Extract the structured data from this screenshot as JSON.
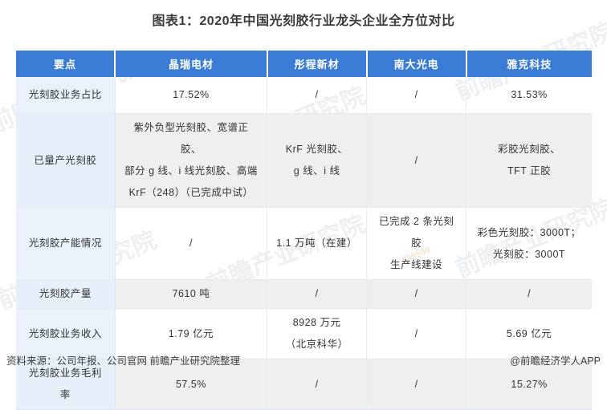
{
  "title": "图表1：2020年中国光刻胶行业龙头企业全方位对比",
  "table": {
    "headers": [
      "要点",
      "晶瑞电材",
      "彤程新材",
      "南大光电",
      "雅克科技"
    ],
    "rows": [
      {
        "label": "光刻胶业务占比",
        "cells": [
          "17.52%",
          "/",
          "/",
          "31.53%"
        ]
      },
      {
        "label": "已量产光刻胶",
        "cells": [
          "紫外负型光刻胶、宽谱正胶、\n部分 g 线、i 线光刻胶、高端\nKrF（248）（已完成中试）",
          "KrF 光刻胶、\ng 线、i 线",
          "/",
          "彩胶光刻胶、\nTFT 正胶"
        ]
      },
      {
        "label": "光刻胶产能情况",
        "cells": [
          "/",
          "1.1 万吨（在建）",
          "已完成 2 条光刻胶\n生产线建设",
          "彩色光刻胶：3000T；\n光刻胶：3000T"
        ]
      },
      {
        "label": "光刻胶产量",
        "cells": [
          "7610 吨",
          "/",
          "/",
          "/"
        ]
      },
      {
        "label": "光刻胶业务收入",
        "cells": [
          "1.79 亿元",
          "8928 万元\n（北京科华）",
          "/",
          "5.69 亿元"
        ]
      },
      {
        "label": "光刻胶业务毛利率",
        "cells": [
          "57.5%",
          "/",
          "/",
          "15.27%"
        ]
      }
    ]
  },
  "footer": {
    "source": "资料来源：公司年报、公司官网 前瞻产业研究院整理",
    "credit": "@前瞻经济学人APP"
  },
  "watermark": {
    "text": "前瞻产业研究院",
    "digits": "839599"
  },
  "colors": {
    "header_bg": "#3a7bd5",
    "label_column_bg": "#eaf1fb",
    "alt_row_bg": "#efefef",
    "title_text": "#3b3b3b"
  },
  "chart_data": {
    "type": "table",
    "title": "图表1：2020年中国光刻胶行业龙头企业全方位对比",
    "columns": [
      "要点",
      "晶瑞电材",
      "彤程新材",
      "南大光电",
      "雅克科技"
    ],
    "rows": [
      [
        "光刻胶业务占比",
        "17.52%",
        "/",
        "/",
        "31.53%"
      ],
      [
        "已量产光刻胶",
        "紫外负型光刻胶、宽谱正胶、部分g线、i线光刻胶、高端KrF（248）（已完成中试）",
        "KrF光刻胶、g线、i线",
        "/",
        "彩胶光刻胶、TFT正胶"
      ],
      [
        "光刻胶产能情况",
        "/",
        "1.1万吨（在建）",
        "已完成2条光刻胶生产线建设",
        "彩色光刻胶：3000T；光刻胶：3000T"
      ],
      [
        "光刻胶产量",
        "7610吨",
        "/",
        "/",
        "/"
      ],
      [
        "光刻胶业务收入",
        "1.79亿元",
        "8928万元（北京科华）",
        "/",
        "5.69亿元"
      ],
      [
        "光刻胶业务毛利率",
        "57.5%",
        "/",
        "/",
        "15.27%"
      ]
    ]
  }
}
